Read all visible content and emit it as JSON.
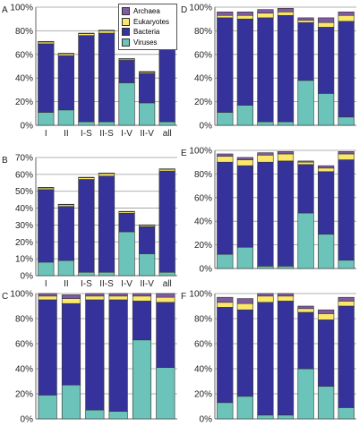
{
  "colors": {
    "Viruses": "#6cc3b9",
    "Bacteria": "#35339b",
    "Eukaryotes": "#fbe86a",
    "Archaea": "#7e5aa0",
    "grid": "#999999",
    "axis": "#666666"
  },
  "legend": [
    "Archaea",
    "Eukaryotes",
    "Bacteria",
    "Viruses"
  ],
  "chart_data": [
    {
      "panel": "A",
      "type": "bar",
      "stacked": true,
      "categories": [
        "I",
        "II",
        "I-S",
        "II-S",
        "I-V",
        "II-V",
        "all"
      ],
      "yticks": [
        "0%",
        "20%",
        "40%",
        "60%",
        "80%",
        "100%"
      ],
      "ylim": [
        0,
        100
      ],
      "series": [
        {
          "name": "Viruses",
          "values": [
            11,
            13,
            3,
            3,
            36,
            19,
            3
          ]
        },
        {
          "name": "Bacteria",
          "values": [
            58,
            46,
            73,
            75,
            19,
            25,
            75
          ]
        },
        {
          "name": "Eukaryotes",
          "values": [
            1.5,
            1.5,
            1.5,
            2,
            1,
            1,
            1.5
          ]
        },
        {
          "name": "Archaea",
          "values": [
            0.5,
            0.5,
            0.5,
            0.5,
            0.5,
            0.5,
            0.5
          ]
        }
      ]
    },
    {
      "panel": "B",
      "type": "bar",
      "stacked": true,
      "categories": [
        "I",
        "II",
        "I-S",
        "II-S",
        "I-V",
        "II-V",
        "all"
      ],
      "yticks": [
        "0%",
        "10%",
        "20%",
        "30%",
        "40%",
        "50%",
        "60%",
        "70%"
      ],
      "ylim": [
        0,
        70
      ],
      "series": [
        {
          "name": "Viruses",
          "values": [
            8,
            9,
            2,
            2,
            26,
            13,
            2
          ]
        },
        {
          "name": "Bacteria",
          "values": [
            43,
            32,
            55,
            57,
            11,
            16,
            60
          ]
        },
        {
          "name": "Eukaryotes",
          "values": [
            1,
            1,
            1,
            1.5,
            0.8,
            0.8,
            1
          ]
        },
        {
          "name": "Archaea",
          "values": [
            0.3,
            0.3,
            0.3,
            0.3,
            0.3,
            0.3,
            0.3
          ]
        }
      ]
    },
    {
      "panel": "C",
      "type": "bar",
      "stacked": true,
      "categories": [
        "",
        "",
        "",
        "",
        "",
        ""
      ],
      "yticks": [
        "0%",
        "20%",
        "40%",
        "60%",
        "80%",
        "100%"
      ],
      "ylim": [
        0,
        100
      ],
      "series": [
        {
          "name": "Viruses",
          "values": [
            19,
            27,
            7,
            6,
            63,
            41
          ]
        },
        {
          "name": "Bacteria",
          "values": [
            76,
            65,
            88,
            89,
            31,
            52
          ]
        },
        {
          "name": "Eukaryotes",
          "values": [
            3,
            4,
            3,
            3,
            4,
            4
          ]
        },
        {
          "name": "Archaea",
          "values": [
            2,
            3,
            2,
            2,
            2,
            3
          ]
        }
      ]
    },
    {
      "panel": "D",
      "type": "bar",
      "stacked": true,
      "categories": [
        "",
        "",
        "",
        "",
        "",
        "",
        ""
      ],
      "yticks": [
        "0%",
        "20%",
        "40%",
        "60%",
        "80%",
        "100%"
      ],
      "ylim": [
        0,
        100
      ],
      "series": [
        {
          "name": "Viruses",
          "values": [
            11,
            17,
            3,
            3,
            38,
            27,
            7
          ]
        },
        {
          "name": "Bacteria",
          "values": [
            80,
            73,
            88,
            90,
            49,
            56,
            81
          ]
        },
        {
          "name": "Eukaryotes",
          "values": [
            2,
            3,
            4,
            3,
            2,
            4,
            5
          ]
        },
        {
          "name": "Archaea",
          "values": [
            3,
            3,
            3,
            3,
            2,
            4,
            3
          ]
        }
      ]
    },
    {
      "panel": "E",
      "type": "bar",
      "stacked": true,
      "categories": [
        "",
        "",
        "",
        "",
        "",
        "",
        ""
      ],
      "yticks": [
        "0%",
        "20%",
        "40%",
        "60%",
        "80%",
        "100%"
      ],
      "ylim": [
        0,
        100
      ],
      "series": [
        {
          "name": "Viruses",
          "values": [
            12,
            18,
            2,
            2,
            47,
            29,
            7
          ]
        },
        {
          "name": "Bacteria",
          "values": [
            78,
            69,
            88,
            89,
            41,
            53,
            85
          ]
        },
        {
          "name": "Eukaryotes",
          "values": [
            5,
            5,
            6,
            6,
            2,
            3,
            5
          ]
        },
        {
          "name": "Archaea",
          "values": [
            2,
            2,
            2,
            2,
            1,
            2,
            2
          ]
        }
      ]
    },
    {
      "panel": "F",
      "type": "bar",
      "stacked": true,
      "categories": [
        "",
        "",
        "",
        "",
        "",
        "",
        ""
      ],
      "yticks": [
        "0%",
        "20%",
        "40%",
        "60%",
        "80%",
        "100%"
      ],
      "ylim": [
        0,
        100
      ],
      "series": [
        {
          "name": "Viruses",
          "values": [
            13,
            18,
            3,
            3,
            40,
            26,
            9
          ]
        },
        {
          "name": "Bacteria",
          "values": [
            76,
            69,
            90,
            91,
            45,
            53,
            81
          ]
        },
        {
          "name": "Eukaryotes",
          "values": [
            4,
            5,
            5,
            4,
            3,
            5,
            4
          ]
        },
        {
          "name": "Archaea",
          "values": [
            4,
            4,
            2,
            2,
            2,
            3,
            3
          ]
        }
      ]
    }
  ]
}
